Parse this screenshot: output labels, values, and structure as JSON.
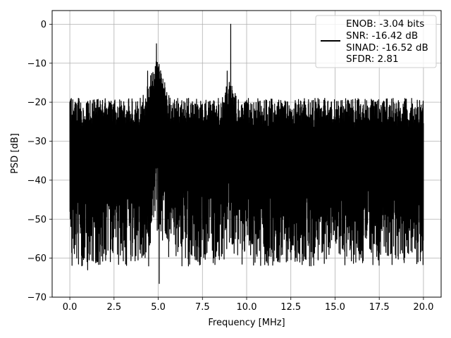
{
  "chart_data": {
    "type": "line",
    "title": "",
    "xlabel": "Frequency [MHz]",
    "ylabel": "PSD [dB]",
    "xlim": [
      -1.0,
      21.0
    ],
    "ylim": [
      -70,
      3.5
    ],
    "xticks": [
      0.0,
      2.5,
      5.0,
      7.5,
      10.0,
      12.5,
      15.0,
      17.5,
      20.0
    ],
    "xtick_labels": [
      "0.0",
      "2.5",
      "5.0",
      "7.5",
      "10.0",
      "12.5",
      "15.0",
      "17.5",
      "20.0"
    ],
    "yticks": [
      0,
      -10,
      -20,
      -30,
      -40,
      -50,
      -60,
      -70
    ],
    "ytick_labels": [
      "0",
      "−10",
      "−20",
      "−30",
      "−40",
      "−50",
      "−60",
      "−70"
    ],
    "grid": true,
    "line_color": "#000000",
    "legend": {
      "placement": "top-right",
      "entries": [
        "ENOB: -3.04 bits",
        "SNR: -16.42 dB",
        "SINAD: -16.52 dB",
        "SFDR: 2.81"
      ]
    },
    "series": [
      {
        "x_start": 0.0,
        "x_end": 20.0,
        "noise_floor_mean": -35,
        "min_values_range": [
          -67,
          -42
        ],
        "max_values_range": [
          -28,
          -17
        ],
        "peaks": [
          {
            "x": 0.0,
            "y": -20
          },
          {
            "x": 4.9,
            "y": -5
          },
          {
            "x": 9.1,
            "y": 0
          },
          {
            "x": 4.4,
            "y": -12
          },
          {
            "x": 8.9,
            "y": -12
          }
        ],
        "notable_minima": [
          {
            "x": 5.05,
            "y": -66.5
          },
          {
            "x": 4.45,
            "y": -62
          },
          {
            "x": 6.7,
            "y": -62
          },
          {
            "x": 1.0,
            "y": -63
          },
          {
            "x": 13.0,
            "y": -61
          }
        ]
      }
    ]
  }
}
